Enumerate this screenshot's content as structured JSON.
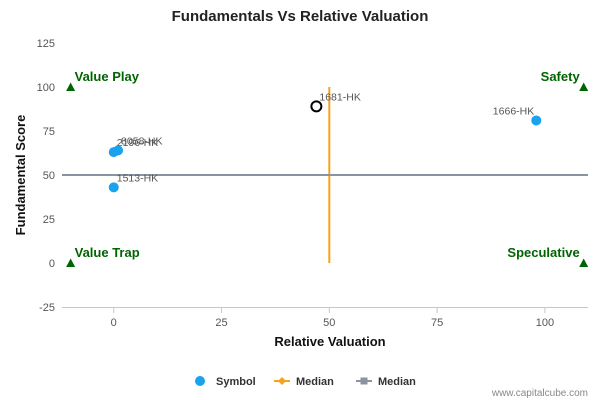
{
  "chart_data": {
    "type": "scatter",
    "title": "Fundamentals Vs Relative Valuation",
    "xlabel": "Relative Valuation",
    "ylabel": "Fundamental Score",
    "xlim": [
      -12,
      110
    ],
    "ylim": [
      -25,
      125
    ],
    "x_ticks": [
      0,
      25,
      50,
      75,
      100
    ],
    "y_ticks": [
      -25,
      0,
      25,
      50,
      75,
      100,
      125
    ],
    "grid": false,
    "legend_position": "bottom",
    "series": [
      {
        "name": "Symbol",
        "color": "#1aa3ec",
        "points": [
          {
            "label": "8058-HK",
            "x": 1,
            "y": 64
          },
          {
            "label": "2196-HK",
            "x": 0,
            "y": 63
          },
          {
            "label": "1513-HK",
            "x": 0,
            "y": 43
          },
          {
            "label": "1666-HK",
            "x": 98,
            "y": 81
          }
        ]
      },
      {
        "name": "Median",
        "color": "#f7a21b",
        "orientation": "vertical",
        "x": 50,
        "y_range": [
          0,
          100
        ]
      },
      {
        "name": "Median",
        "color": "#8a93a3",
        "orientation": "horizontal",
        "y": 50,
        "x_range": [
          -12,
          110
        ]
      }
    ],
    "highlight": {
      "label": "1681-HK",
      "x": 47,
      "y": 89
    },
    "quadrant_labels": [
      "Value Play",
      "Safety",
      "Value Trap",
      "Speculative"
    ],
    "quadrant_markers": [
      {
        "x": -10,
        "y": 100
      },
      {
        "x": 109,
        "y": 100
      },
      {
        "x": -10,
        "y": 0
      },
      {
        "x": 109,
        "y": 0
      }
    ],
    "quadrant_color": "#006400"
  },
  "credit": "www.capitalcube.com"
}
